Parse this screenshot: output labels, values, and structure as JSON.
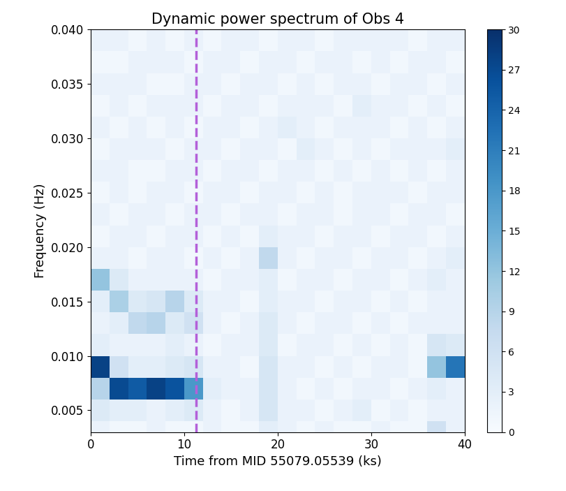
{
  "chart_data": {
    "type": "heatmap",
    "title": "Dynamic power spectrum of Obs 4",
    "x_label": "Time from MID 55079.05539 (ks)",
    "y_label": "Frequency (Hz)",
    "color": "Blues",
    "x_edges": [
      0,
      2,
      4,
      6,
      8,
      10,
      12,
      14,
      16,
      18,
      20,
      22,
      24,
      26,
      28,
      30,
      32,
      34,
      36,
      38,
      40
    ],
    "y_edges": [
      0.002,
      0.004,
      0.006,
      0.008,
      0.01,
      0.012,
      0.014,
      0.016,
      0.018,
      0.02,
      0.022,
      0.024,
      0.026,
      0.028,
      0.03,
      0.032,
      0.034,
      0.036,
      0.038,
      0.04
    ],
    "cells": [
      [
        2,
        1,
        1,
        2,
        1,
        1,
        2,
        1,
        1,
        3,
        2,
        1,
        2,
        1,
        1,
        2,
        1,
        1,
        6,
        2
      ],
      [
        4,
        3,
        3,
        2,
        3,
        4,
        2,
        1,
        2,
        5,
        2,
        2,
        1,
        2,
        3,
        1,
        2,
        1,
        2,
        2
      ],
      [
        9,
        27,
        25,
        28,
        26,
        18,
        3,
        2,
        2,
        5,
        2,
        1,
        2,
        1,
        2,
        2,
        1,
        2,
        3,
        2
      ],
      [
        28,
        6,
        3,
        3,
        4,
        5,
        2,
        2,
        1,
        5,
        2,
        2,
        1,
        2,
        1,
        2,
        2,
        1,
        12,
        22
      ],
      [
        3,
        2,
        2,
        2,
        3,
        2,
        1,
        2,
        2,
        4,
        1,
        2,
        2,
        1,
        2,
        1,
        2,
        1,
        5,
        4
      ],
      [
        2,
        3,
        8,
        9,
        4,
        6,
        2,
        1,
        2,
        4,
        2,
        1,
        2,
        2,
        1,
        2,
        1,
        2,
        2,
        2
      ],
      [
        3,
        10,
        4,
        5,
        9,
        4,
        2,
        2,
        1,
        3,
        2,
        2,
        1,
        2,
        2,
        1,
        2,
        1,
        2,
        2
      ],
      [
        12,
        4,
        2,
        2,
        2,
        2,
        1,
        2,
        2,
        3,
        1,
        2,
        2,
        1,
        2,
        2,
        1,
        2,
        3,
        2
      ],
      [
        2,
        2,
        1,
        2,
        2,
        1,
        2,
        1,
        2,
        8,
        2,
        1,
        2,
        2,
        1,
        2,
        2,
        1,
        2,
        3
      ],
      [
        1,
        2,
        2,
        1,
        2,
        2,
        1,
        2,
        1,
        3,
        2,
        2,
        1,
        2,
        2,
        1,
        2,
        2,
        1,
        2
      ],
      [
        2,
        1,
        2,
        2,
        1,
        2,
        2,
        1,
        2,
        2,
        1,
        2,
        2,
        1,
        2,
        2,
        1,
        2,
        2,
        1
      ],
      [
        1,
        2,
        1,
        2,
        2,
        1,
        2,
        2,
        1,
        2,
        2,
        1,
        2,
        1,
        2,
        2,
        2,
        1,
        2,
        2
      ],
      [
        2,
        2,
        1,
        1,
        2,
        2,
        1,
        2,
        2,
        1,
        2,
        2,
        1,
        2,
        1,
        2,
        1,
        2,
        1,
        2
      ],
      [
        1,
        2,
        2,
        2,
        1,
        2,
        2,
        1,
        2,
        2,
        1,
        3,
        2,
        1,
        2,
        1,
        2,
        2,
        2,
        3
      ],
      [
        2,
        1,
        2,
        1,
        2,
        1,
        2,
        2,
        1,
        2,
        3,
        2,
        1,
        2,
        2,
        2,
        1,
        2,
        1,
        2
      ],
      [
        1,
        2,
        1,
        2,
        2,
        2,
        1,
        2,
        2,
        1,
        2,
        2,
        2,
        1,
        3,
        2,
        2,
        1,
        2,
        1
      ],
      [
        2,
        2,
        2,
        1,
        1,
        2,
        2,
        1,
        2,
        2,
        1,
        2,
        1,
        2,
        2,
        1,
        2,
        2,
        1,
        2
      ],
      [
        1,
        1,
        2,
        2,
        2,
        1,
        2,
        2,
        1,
        2,
        2,
        1,
        2,
        2,
        1,
        2,
        1,
        2,
        2,
        1
      ],
      [
        2,
        2,
        1,
        2,
        1,
        2,
        1,
        2,
        2,
        1,
        2,
        2,
        1,
        2,
        2,
        2,
        2,
        1,
        2,
        2
      ]
    ],
    "xlim": [
      0,
      40
    ],
    "xticks": [
      0,
      10,
      20,
      30,
      40
    ],
    "ylim": [
      0.003,
      0.04
    ],
    "yticks": [
      {
        "value": 0.005,
        "label": "0.005"
      },
      {
        "value": 0.01,
        "label": "0.010"
      },
      {
        "value": 0.015,
        "label": "0.015"
      },
      {
        "value": 0.02,
        "label": "0.020"
      },
      {
        "value": 0.025,
        "label": "0.025"
      },
      {
        "value": 0.03,
        "label": "0.030"
      },
      {
        "value": 0.035,
        "label": "0.035"
      },
      {
        "value": 0.04,
        "label": "0.040"
      }
    ],
    "colorbar_range": [
      0,
      30
    ],
    "colorbar_ticks": [
      0,
      3,
      6,
      9,
      12,
      15,
      18,
      21,
      24,
      27,
      30
    ],
    "vline": {
      "x": 11.3,
      "color": "#b360d9",
      "line_style": "dashed"
    }
  }
}
